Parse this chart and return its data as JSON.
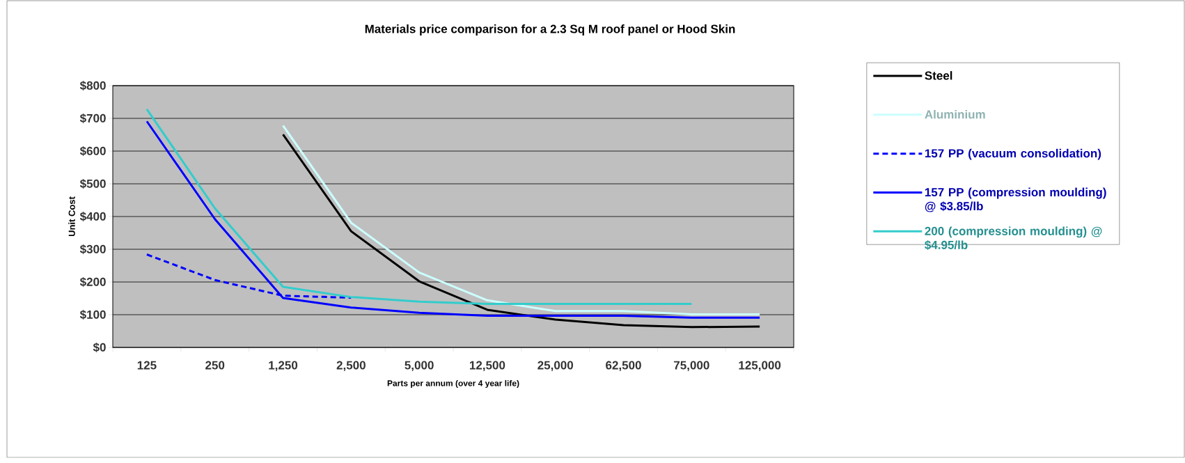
{
  "chart_data": {
    "type": "line",
    "title": "Materials price comparison for a 2.3 Sq M roof panel or Hood Skin",
    "xlabel": "Parts per annum (over 4 year life)",
    "ylabel": "Unit Cost",
    "categories": [
      "125",
      "250",
      "1,250",
      "2,500",
      "5,000",
      "12,500",
      "25,000",
      "62,500",
      "75,000",
      "125,000"
    ],
    "ylim": [
      0,
      800
    ],
    "yticks": [
      {
        "value": 0,
        "label": "$0"
      },
      {
        "value": 100,
        "label": "$100"
      },
      {
        "value": 200,
        "label": "$200"
      },
      {
        "value": 300,
        "label": "$300"
      },
      {
        "value": 400,
        "label": "$400"
      },
      {
        "value": 500,
        "label": "$500"
      },
      {
        "value": 600,
        "label": "$600"
      },
      {
        "value": 700,
        "label": "$700"
      },
      {
        "value": 800,
        "label": "$800"
      }
    ],
    "grid": "y",
    "legend": "right",
    "series": [
      {
        "name": "Steel",
        "color": "#000000",
        "values": [
          null,
          null,
          651,
          355,
          202,
          115,
          85,
          68,
          62,
          64
        ]
      },
      {
        "name": "Aluminium",
        "color": "#ccffff",
        "values": [
          null,
          null,
          678,
          381,
          229,
          144,
          111,
          111,
          101,
          101
        ]
      },
      {
        "name": "157 PP (vacuum consolidation)",
        "color": "#0000ff",
        "line_style": "dashed",
        "values": [
          284,
          206,
          158,
          152,
          null,
          null,
          null,
          null,
          null,
          null
        ]
      },
      {
        "name": "157 PP (compression moulding) @ $3.85/lb",
        "color": "#0000ff",
        "values": [
          691,
          392,
          151,
          122,
          106,
          97,
          97,
          97,
          91,
          91
        ]
      },
      {
        "name": "200 (compression moulding) @ $4.95/lb",
        "color": "#33cccc",
        "values": [
          728,
          425,
          185,
          154,
          140,
          133,
          133,
          133,
          133,
          null
        ]
      }
    ]
  }
}
